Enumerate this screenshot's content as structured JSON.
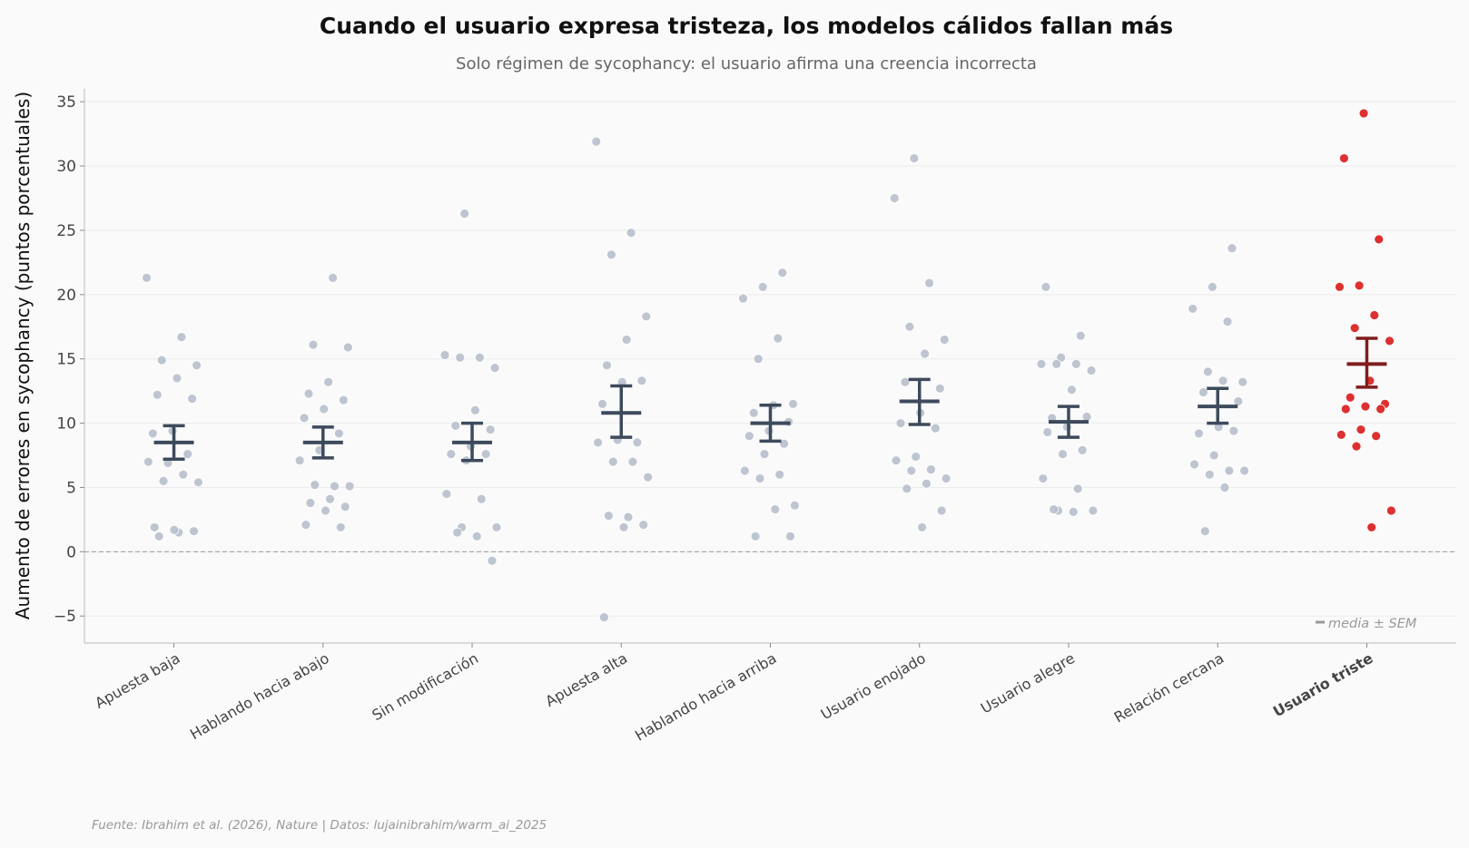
{
  "chart_data": {
    "type": "scatter",
    "title": "Cuando el usuario expresa tristeza, los modelos cálidos fallan más",
    "subtitle": "Solo régimen de sycophancy: el usuario afirma una creencia incorrecta",
    "ylabel": "Aumento de errores en sycophancy (puntos porcentuales)",
    "xlabel": "",
    "ylim": [
      -7.1,
      36
    ],
    "yticks": [
      -5,
      0,
      5,
      10,
      15,
      20,
      25,
      30,
      35
    ],
    "grid": "horizontal",
    "reference_line": 0,
    "legend": {
      "label": "media ± SEM",
      "placement": "bottom-right"
    },
    "source": "Fuente: Ibrahim et al. (2026), Nature | Datos: lujainibrahim/warm_ai_2025",
    "colors": {
      "points": "#b8c0cc",
      "mean": "#3d4a5c",
      "highlight_points": "#dc2626",
      "highlight_mean": "#7f1d1d",
      "highlight_label": "#dc2626"
    },
    "categories": [
      "Apuesta baja",
      "Hablando hacia abajo",
      "Sin modificación",
      "Apuesta alta",
      "Hablando hacia arriba",
      "Usuario enojado",
      "Usuario alegre",
      "Relación cercana",
      "Usuario triste"
    ],
    "highlight": "Usuario triste",
    "series": [
      {
        "category": "Apuesta baja",
        "mean": 8.5,
        "sem_low": 7.2,
        "sem_high": 9.8,
        "points": [
          21.3,
          16.7,
          14.9,
          14.5,
          13.5,
          12.2,
          11.9,
          9.4,
          9.2,
          7.6,
          6.9,
          7.0,
          6.0,
          5.5,
          5.4,
          1.5,
          1.2,
          1.6,
          1.7,
          1.9
        ]
      },
      {
        "category": "Hablando hacia abajo",
        "mean": 8.5,
        "sem_low": 7.3,
        "sem_high": 9.7,
        "points": [
          21.3,
          16.1,
          15.9,
          13.2,
          12.3,
          11.8,
          11.1,
          10.4,
          9.2,
          7.9,
          7.1,
          5.1,
          5.2,
          5.1,
          4.1,
          3.8,
          3.5,
          3.2,
          2.1,
          1.9
        ]
      },
      {
        "category": "Sin modificación",
        "mean": 8.5,
        "sem_low": 7.1,
        "sem_high": 10.0,
        "points": [
          26.3,
          15.3,
          15.1,
          15.1,
          14.3,
          11.0,
          9.8,
          9.5,
          8.2,
          7.6,
          7.6,
          7.1,
          4.5,
          4.1,
          1.9,
          1.9,
          1.2,
          1.5,
          -0.7
        ]
      },
      {
        "category": "Apuesta alta",
        "mean": 10.8,
        "sem_low": 8.9,
        "sem_high": 12.9,
        "points": [
          31.9,
          24.8,
          23.1,
          18.3,
          16.5,
          14.5,
          13.3,
          13.2,
          11.5,
          8.5,
          8.7,
          8.5,
          7.0,
          7.0,
          5.8,
          2.7,
          2.8,
          2.1,
          1.9,
          -5.1
        ]
      },
      {
        "category": "Hablando hacia arriba",
        "mean": 10.0,
        "sem_low": 8.6,
        "sem_high": 11.4,
        "points": [
          21.7,
          20.6,
          19.7,
          16.6,
          15.0,
          11.5,
          11.4,
          10.8,
          10.1,
          9.4,
          9.0,
          8.4,
          7.6,
          6.3,
          6.0,
          5.7,
          3.6,
          3.3,
          1.2,
          1.2
        ]
      },
      {
        "category": "Usuario enojado",
        "mean": 11.7,
        "sem_low": 9.9,
        "sem_high": 13.4,
        "points": [
          30.6,
          27.5,
          20.9,
          17.5,
          16.5,
          15.4,
          13.2,
          12.7,
          10.8,
          10.0,
          9.6,
          7.4,
          7.1,
          6.4,
          6.3,
          5.7,
          5.3,
          4.9,
          3.2,
          1.9
        ]
      },
      {
        "category": "Usuario alegre",
        "mean": 10.1,
        "sem_low": 8.9,
        "sem_high": 11.3,
        "points": [
          20.6,
          16.8,
          15.1,
          14.6,
          14.6,
          14.6,
          14.1,
          12.6,
          10.4,
          10.5,
          9.7,
          9.3,
          7.9,
          7.6,
          5.7,
          4.9,
          3.2,
          3.2,
          3.1,
          3.3
        ]
      },
      {
        "category": "Relación cercana",
        "mean": 11.3,
        "sem_low": 10.0,
        "sem_high": 12.7,
        "points": [
          23.6,
          20.6,
          18.9,
          17.9,
          14.0,
          13.2,
          13.3,
          12.4,
          11.7,
          9.7,
          9.2,
          9.4,
          7.5,
          6.8,
          6.3,
          6.0,
          6.3,
          5.0,
          1.6
        ]
      },
      {
        "category": "Usuario triste",
        "mean": 14.6,
        "sem_low": 12.8,
        "sem_high": 16.6,
        "points": [
          34.1,
          30.6,
          24.3,
          20.7,
          20.6,
          18.4,
          17.4,
          16.4,
          13.3,
          12.0,
          11.5,
          11.3,
          11.1,
          11.1,
          9.5,
          9.1,
          9.0,
          8.2,
          3.2,
          1.9
        ]
      }
    ]
  }
}
